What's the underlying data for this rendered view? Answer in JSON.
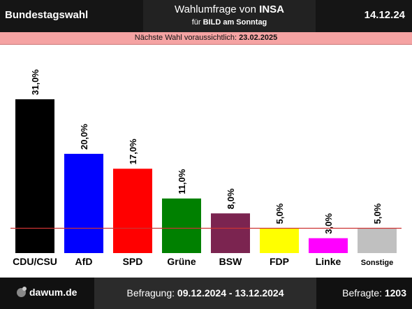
{
  "header": {
    "election": "Bundestagswahl",
    "title_prefix": "Wahlumfrage von ",
    "institute": "INSA",
    "subtitle_prefix": "für ",
    "client": "BILD am Sonntag",
    "date": "14.12.24"
  },
  "notice": {
    "label": "Nächste Wahl voraussichtlich: ",
    "date": "23.02.2025"
  },
  "footer": {
    "logo": "dawum.de",
    "period_label": "Befragung: ",
    "period": "09.12.2024 - 13.12.2024",
    "respondents_label": "Befragte: ",
    "respondents": "1203"
  },
  "chart_data": {
    "type": "bar",
    "categories": [
      "CDU/CSU",
      "AfD",
      "SPD",
      "Grüne",
      "BSW",
      "FDP",
      "Linke",
      "Sonstige"
    ],
    "values": [
      31.0,
      20.0,
      17.0,
      11.0,
      8.0,
      5.0,
      3.0,
      5.0
    ],
    "value_labels": [
      "31,0%",
      "20,0%",
      "17,0%",
      "11,0%",
      "8,0%",
      "5,0%",
      "3,0%",
      "5,0%"
    ],
    "colors": [
      "#000000",
      "#0000ff",
      "#ff0000",
      "#008000",
      "#7b2450",
      "#ffff00",
      "#ff00ff",
      "#c0c0c0"
    ],
    "threshold": 5.0,
    "threshold_color": "#cc3333",
    "ylim": [
      0,
      31
    ]
  }
}
